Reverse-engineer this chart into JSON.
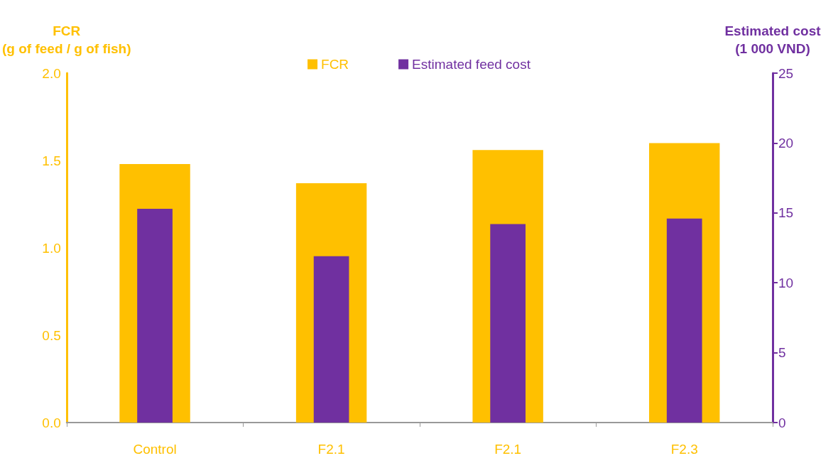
{
  "chart_data": {
    "type": "bar",
    "categories": [
      "Control",
      "F2.1",
      "F2.1",
      "F2.3"
    ],
    "ylabel": "FCR\n(g of feed / g of fish)",
    "y2label": "Estimated cost\n(1 000 VND)",
    "ylim": [
      0,
      2
    ],
    "yticks": [
      {
        "value": 0,
        "label": "0.0"
      },
      {
        "value": 0.5,
        "label": "0.5"
      },
      {
        "value": 1,
        "label": "1.0"
      },
      {
        "value": 1.5,
        "label": "1.5"
      },
      {
        "value": 2,
        "label": "2.0"
      }
    ],
    "y2lim": [
      0,
      25
    ],
    "y2ticks": [
      0,
      5,
      10,
      15,
      20,
      25
    ],
    "series": [
      {
        "name": "FCR",
        "color": "#ffc000",
        "values": [
          1.48,
          1.37,
          1.56,
          1.6
        ]
      },
      {
        "name": "Estimated feed cost",
        "color": "#7030a0",
        "axis": "y2",
        "values": [
          15.3,
          11.9,
          14.2,
          14.6
        ]
      }
    ],
    "legend": "top",
    "grid": false
  }
}
